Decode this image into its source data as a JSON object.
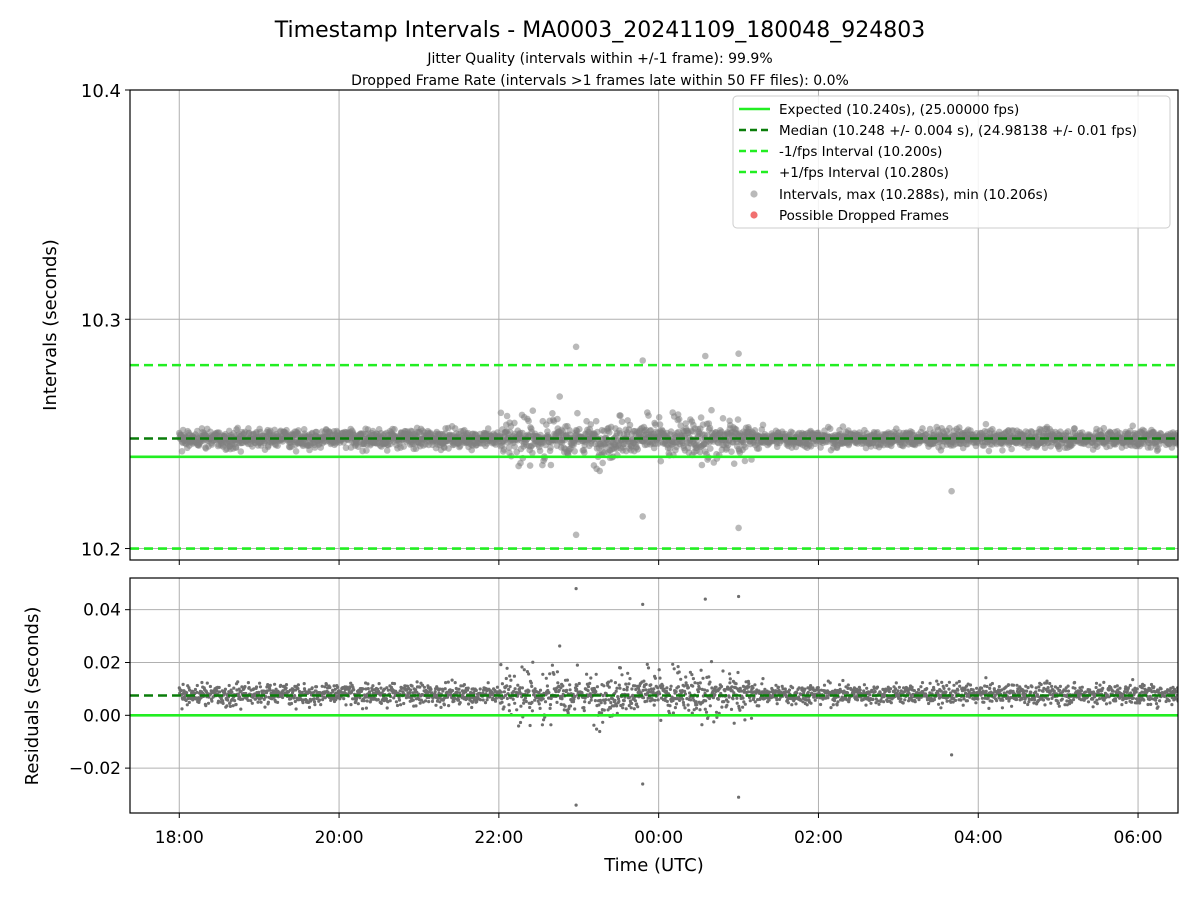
{
  "chart_data": {
    "type": "scatter",
    "title": "Timestamp Intervals - MA0003_20241109_180048_924803",
    "subtitle_1": "Jitter Quality (intervals within +/-1 frame): 99.9%",
    "subtitle_2": "Dropped Frame Rate (intervals >1 frames late within 50 FF files): 0.0%",
    "xlabel": "Time (UTC)",
    "x_time_range": [
      "2024-11-09 17:23",
      "2024-11-10 06:30"
    ],
    "x_tick_labels": [
      "18:00",
      "20:00",
      "22:00",
      "00:00",
      "02:00",
      "04:00",
      "06:00"
    ],
    "x_tick_hours": [
      18,
      20,
      22,
      24,
      26,
      28,
      30
    ],
    "data_time_range": [
      "2024-11-09 18:00",
      "2024-11-10 06:30"
    ],
    "grid": true,
    "legend_position": "upper right",
    "top_panel": {
      "ylabel": "Intervals (seconds)",
      "ylim": [
        10.195,
        10.4
      ],
      "y_ticks": [
        10.2,
        10.3,
        10.4
      ],
      "y_tick_labels": [
        "10.2",
        "10.3",
        "10.4"
      ],
      "reference_lines": [
        {
          "name": "Expected (10.240s), (25.00000 fps)",
          "y": 10.24,
          "style": "solid",
          "color": "#22ee22"
        },
        {
          "name": "Median (10.248 +/- 0.004 s), (24.98138 +/- 0.01 fps)",
          "y": 10.248,
          "style": "dashed",
          "color": "#0a7d0a"
        },
        {
          "name": "-1/fps Interval (10.200s)",
          "y": 10.2,
          "style": "dashed",
          "color": "#22ee22"
        },
        {
          "name": "+1/fps Interval (10.280s)",
          "y": 10.28,
          "style": "dashed",
          "color": "#22ee22"
        }
      ],
      "scatter_series": [
        {
          "name": "Intervals, max (10.288s), min (10.206s)",
          "color": "#808080",
          "max": 10.288,
          "min": 10.206
        },
        {
          "name": "Possible Dropped Frames",
          "color": "#f06060",
          "count": 0
        }
      ]
    },
    "bottom_panel": {
      "ylabel": "Residuals (seconds)",
      "ylim": [
        -0.037,
        0.052
      ],
      "y_ticks": [
        -0.02,
        0.0,
        0.02,
        0.04
      ],
      "y_tick_labels": [
        "−0.02",
        "0.00",
        "0.02",
        "0.04"
      ],
      "reference_lines": [
        {
          "y": 0.0,
          "style": "solid",
          "color": "#22ee22"
        },
        {
          "y": 0.0075,
          "style": "dashed",
          "color": "#0a7d0a"
        }
      ]
    },
    "point_distribution": {
      "baseline_interval": 10.248,
      "baseline_residual": 0.008,
      "typical_spread": 0.006,
      "high_jitter_window": [
        "2024-11-09 22:00",
        "2024-11-10 01:10"
      ],
      "high_jitter_spread": 0.016,
      "notable_points": [
        {
          "time": "2024-11-09 22:58",
          "interval": 10.288,
          "residual": 0.048
        },
        {
          "time": "2024-11-09 22:58",
          "interval": 10.206,
          "residual": -0.034
        },
        {
          "time": "2024-11-10 01:00",
          "interval": 10.285,
          "residual": 0.045
        },
        {
          "time": "2024-11-10 00:35",
          "interval": 10.284,
          "residual": 0.044
        },
        {
          "time": "2024-11-09 23:48",
          "interval": 10.282,
          "residual": 0.042
        },
        {
          "time": "2024-11-10 01:00",
          "interval": 10.21,
          "residual": -0.031
        },
        {
          "time": "2024-11-09 23:48",
          "interval": 10.213,
          "residual": -0.026
        },
        {
          "time": "2024-11-10 03:40",
          "interval": 10.225,
          "residual": -0.015
        }
      ]
    }
  }
}
